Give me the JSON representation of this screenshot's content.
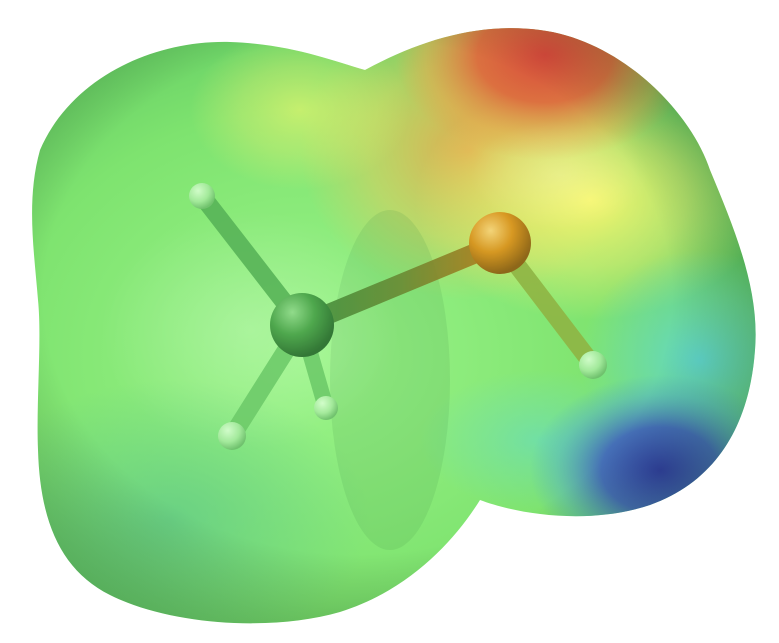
{
  "scene": {
    "molecule": "methanethiol",
    "surface": "electrostatic-potential-map",
    "background_color": "#ffffff",
    "atoms": [
      {
        "element": "C",
        "color": "#3f9a3f"
      },
      {
        "element": "S",
        "color": "#d8901a"
      },
      {
        "element": "H",
        "color": "#b9f2b9"
      },
      {
        "element": "H",
        "color": "#b9f2b9"
      },
      {
        "element": "H",
        "color": "#b9f2b9"
      },
      {
        "element": "H",
        "color": "#b9f2b9"
      }
    ],
    "potential_colors": {
      "most_negative": "#d94a3c",
      "intermediate_high": "#f7f36a",
      "neutral": "#7ee87a",
      "intermediate_low": "#5fd8c8",
      "most_positive": "#3848a8"
    }
  }
}
